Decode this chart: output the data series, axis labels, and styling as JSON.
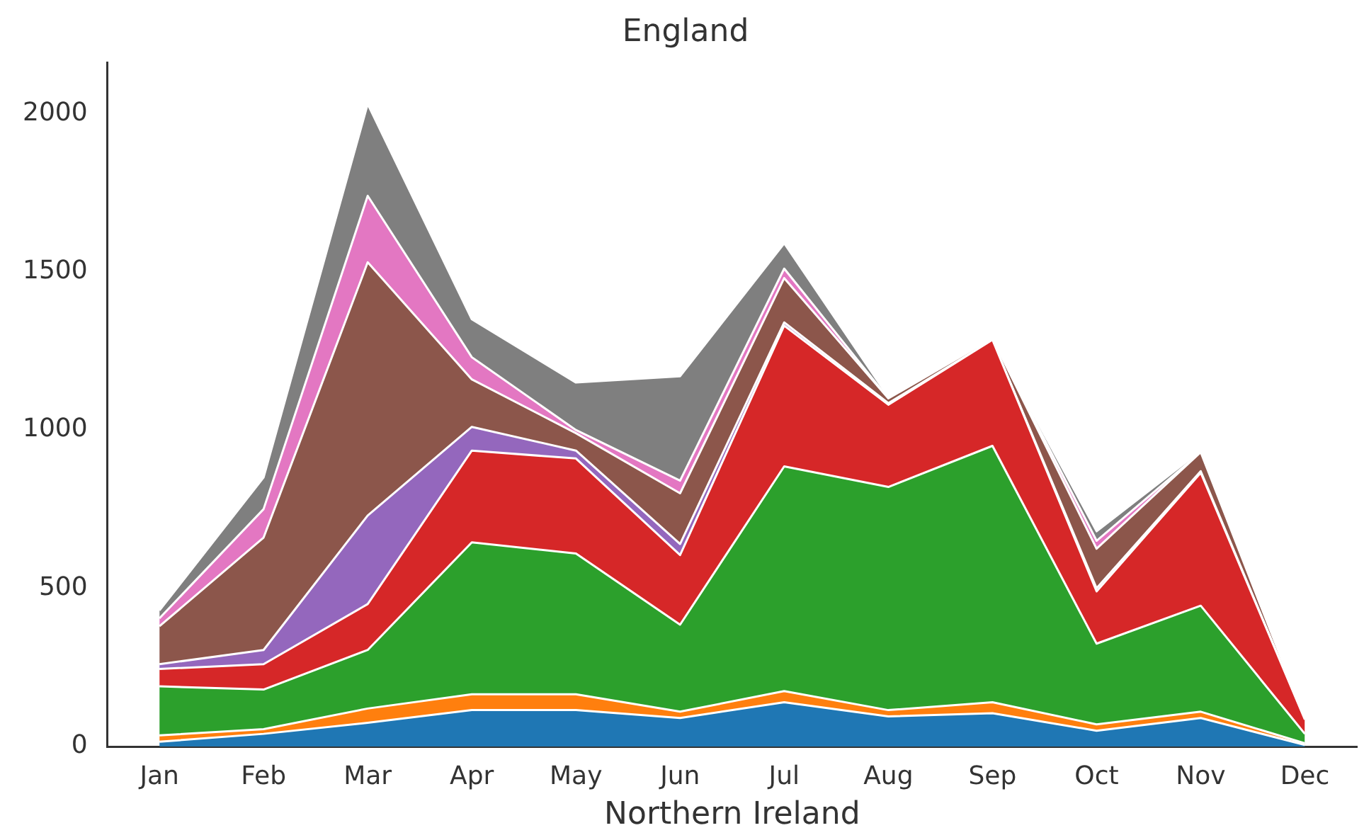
{
  "chart_data": {
    "type": "area",
    "title": "England",
    "xlabel": "Northern Ireland",
    "stacked": true,
    "categories": [
      "Jan",
      "Feb",
      "Mar",
      "Apr",
      "May",
      "Jun",
      "Jul",
      "Aug",
      "Sep",
      "Oct",
      "Nov",
      "Dec"
    ],
    "series": [
      {
        "color": "#1f77b4",
        "values": [
          15,
          40,
          75,
          115,
          115,
          90,
          140,
          95,
          105,
          50,
          90,
          5
        ]
      },
      {
        "color": "#ff7f0e",
        "values": [
          20,
          15,
          45,
          50,
          50,
          20,
          35,
          20,
          35,
          20,
          20,
          5
        ]
      },
      {
        "color": "#2ca02c",
        "values": [
          155,
          125,
          185,
          480,
          445,
          275,
          710,
          705,
          810,
          255,
          335,
          30
        ]
      },
      {
        "color": "#d62728",
        "values": [
          55,
          80,
          145,
          290,
          300,
          220,
          445,
          260,
          335,
          165,
          420,
          45
        ]
      },
      {
        "color": "#9467bd",
        "values": [
          15,
          45,
          280,
          75,
          25,
          35,
          10,
          5,
          0,
          10,
          5,
          0
        ]
      },
      {
        "color": "#8c564b",
        "values": [
          120,
          355,
          800,
          150,
          55,
          160,
          140,
          15,
          5,
          125,
          60,
          3
        ]
      },
      {
        "color": "#e377c2",
        "values": [
          25,
          90,
          210,
          70,
          10,
          40,
          30,
          0,
          0,
          25,
          0,
          1
        ]
      },
      {
        "color": "#7f7f7f",
        "values": [
          25,
          100,
          290,
          120,
          150,
          330,
          80,
          5,
          0,
          30,
          5,
          1
        ]
      }
    ],
    "ylim": [
      0,
      2160
    ],
    "yticks": [
      0,
      500,
      1000,
      1500,
      2000
    ],
    "grid": false,
    "legend": false
  }
}
